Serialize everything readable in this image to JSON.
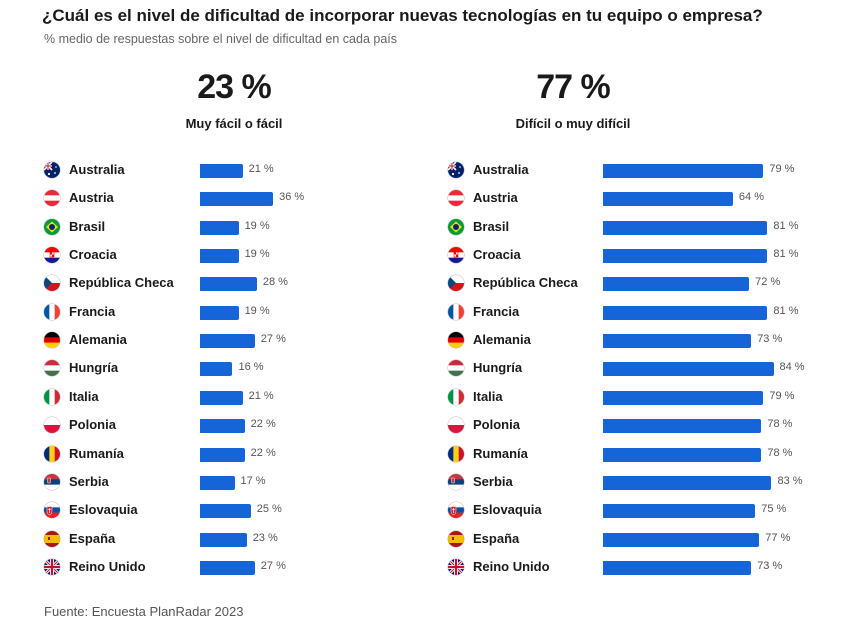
{
  "header": {
    "title": "¿Cuál es el nivel de dificultad de incorporar nuevas tecnologías en tu equipo o empresa?",
    "subtitle": "% medio de respuestas sobre el nivel de dificultad en cada país"
  },
  "footer": {
    "source": "Fuente: Encuesta PlanRadar 2023"
  },
  "chart_data": [
    {
      "type": "bar",
      "orientation": "horizontal",
      "headline": "23 %",
      "title": "Muy fácil o fácil",
      "color": "#1565d8",
      "categories": [
        "Australia",
        "Austria",
        "Brasil",
        "Croacia",
        "República Checa",
        "Francia",
        "Alemania",
        "Hungría",
        "Italia",
        "Polonia",
        "Rumanía",
        "Serbia",
        "Eslovaquia",
        "España",
        "Reino Unido"
      ],
      "values": [
        21,
        36,
        19,
        19,
        28,
        19,
        27,
        16,
        21,
        22,
        22,
        17,
        25,
        23,
        27
      ],
      "value_labels": [
        "21 %",
        "36 %",
        "19 %",
        "19 %",
        "28 %",
        "19 %",
        "27 %",
        "16 %",
        "21 %",
        "22 %",
        "22 %",
        "17 %",
        "25 %",
        "23 %",
        "27 %"
      ],
      "flags": [
        "australia-flag-icon",
        "austria-flag-icon",
        "brasil-flag-icon",
        "croacia-flag-icon",
        "republica-checa-flag-icon",
        "francia-flag-icon",
        "alemania-flag-icon",
        "hungria-flag-icon",
        "italia-flag-icon",
        "polonia-flag-icon",
        "rumania-flag-icon",
        "serbia-flag-icon",
        "eslovaquia-flag-icon",
        "espana-flag-icon",
        "reino-unido-flag-icon"
      ],
      "xlim": [
        0,
        100
      ]
    },
    {
      "type": "bar",
      "orientation": "horizontal",
      "headline": "77 %",
      "title": "Difícil o muy difícil",
      "color": "#1565d8",
      "categories": [
        "Australia",
        "Austria",
        "Brasil",
        "Croacia",
        "República Checa",
        "Francia",
        "Alemania",
        "Hungría",
        "Italia",
        "Polonia",
        "Rumanía",
        "Serbia",
        "Eslovaquia",
        "España",
        "Reino Unido"
      ],
      "values": [
        79,
        64,
        81,
        81,
        72,
        81,
        73,
        84,
        79,
        78,
        78,
        83,
        75,
        77,
        73
      ],
      "value_labels": [
        "79 %",
        "64 %",
        "81 %",
        "81 %",
        "72 %",
        "81 %",
        "73 %",
        "84 %",
        "79 %",
        "78 %",
        "78 %",
        "83 %",
        "75 %",
        "77 %",
        "73 %"
      ],
      "flags": [
        "australia-flag-icon",
        "austria-flag-icon",
        "brasil-flag-icon",
        "croacia-flag-icon",
        "republica-checa-flag-icon",
        "francia-flag-icon",
        "alemania-flag-icon",
        "hungria-flag-icon",
        "italia-flag-icon",
        "polonia-flag-icon",
        "rumania-flag-icon",
        "serbia-flag-icon",
        "eslovaquia-flag-icon",
        "espana-flag-icon",
        "reino-unido-flag-icon"
      ],
      "xlim": [
        0,
        100
      ]
    }
  ]
}
